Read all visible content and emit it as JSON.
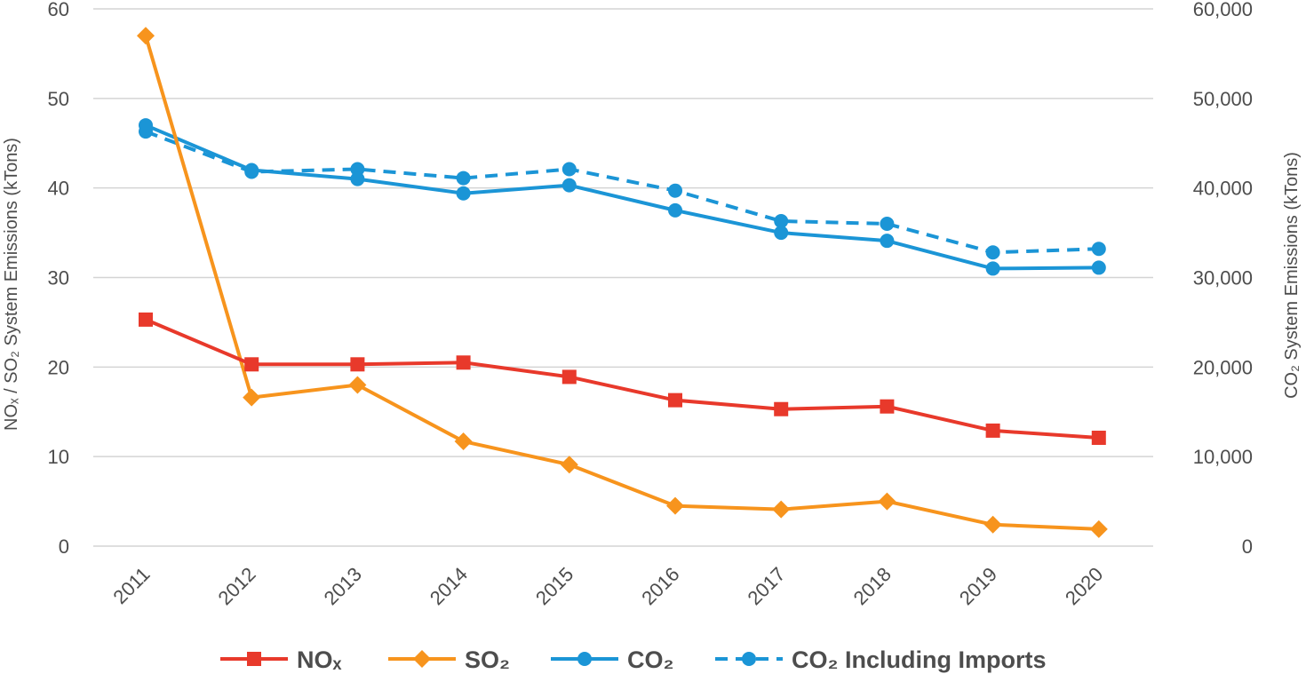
{
  "chart_data": {
    "type": "line",
    "title": "",
    "categories": [
      "2011",
      "2012",
      "2013",
      "2014",
      "2015",
      "2016",
      "2017",
      "2018",
      "2019",
      "2020"
    ],
    "y_left": {
      "label": "NOₓ / SO₂ System Emissions (kTons)",
      "ylim": [
        0,
        60
      ],
      "ticks": [
        "0",
        "10",
        "20",
        "30",
        "40",
        "50",
        "60"
      ]
    },
    "y_right": {
      "label": "CO₂ System Emissions (kTons)",
      "ylim": [
        0,
        60000
      ],
      "ticks": [
        "0",
        "10,000",
        "20,000",
        "30,000",
        "40,000",
        "50,000",
        "60,000"
      ]
    },
    "grid": true,
    "legend_position": "bottom",
    "series": [
      {
        "name": "NOₓ",
        "axis": "left",
        "color": "#e8392b",
        "marker": "square",
        "dashed": false,
        "values": [
          25.3,
          20.3,
          20.3,
          20.5,
          18.9,
          16.3,
          15.3,
          15.6,
          12.9,
          12.1
        ]
      },
      {
        "name": "SO₂",
        "axis": "left",
        "color": "#f7941d",
        "marker": "diamond",
        "dashed": false,
        "values": [
          57.0,
          16.6,
          18.0,
          11.7,
          9.1,
          4.5,
          4.1,
          5.0,
          2.4,
          1.9
        ]
      },
      {
        "name": "CO₂",
        "axis": "right",
        "color": "#1b95d6",
        "marker": "circle",
        "dashed": false,
        "values": [
          47000,
          42000,
          41000,
          39400,
          40300,
          37500,
          35000,
          34100,
          31000,
          31100
        ]
      },
      {
        "name": "CO₂ Including Imports",
        "axis": "right",
        "color": "#1b95d6",
        "marker": "circle",
        "dashed": true,
        "values": [
          46300,
          41800,
          42100,
          41100,
          42100,
          39700,
          36300,
          36000,
          32800,
          33200
        ]
      }
    ]
  }
}
